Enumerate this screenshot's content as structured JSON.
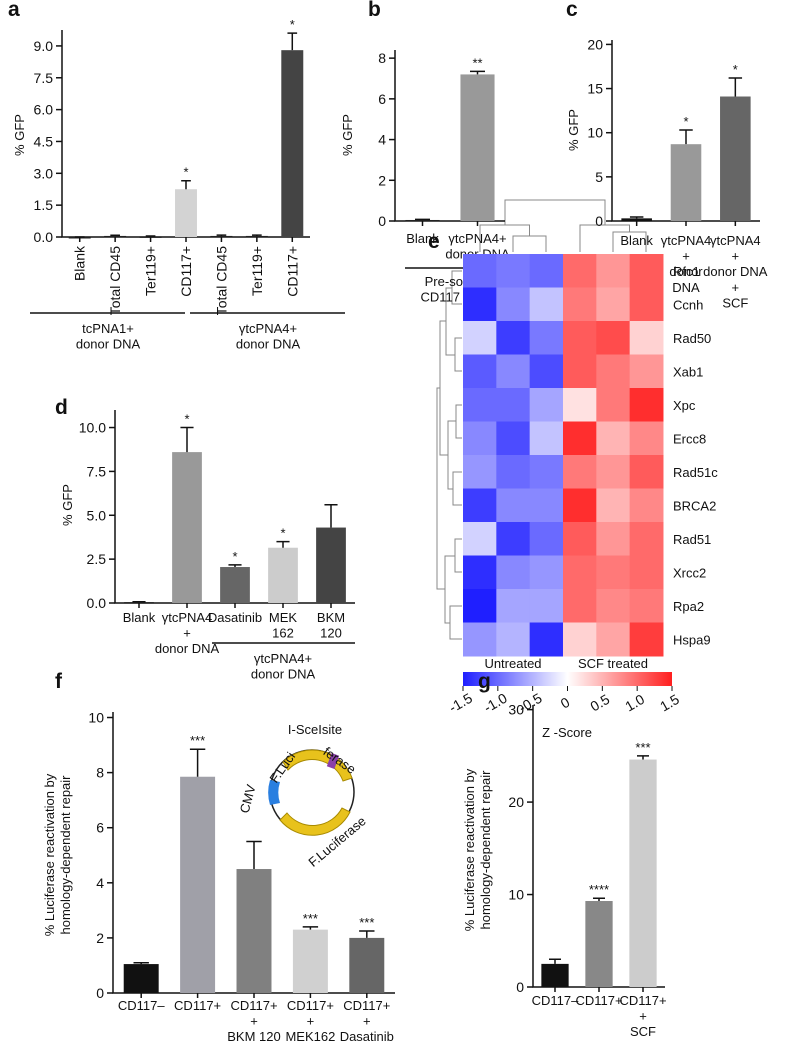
{
  "chart_data": [
    {
      "type": "bar",
      "panel": "a",
      "y_label": "% GFP",
      "categories": [
        "Blank",
        "Total CD45",
        "Ter119+",
        "CD117+",
        "Total CD45",
        "Ter119+",
        "CD117+"
      ],
      "values": [
        0,
        0.05,
        0.03,
        2.25,
        0.05,
        0.05,
        8.8
      ],
      "errors": [
        0,
        0.03,
        0.02,
        0.4,
        0.04,
        0.04,
        0.8
      ],
      "annotations": [
        null,
        null,
        null,
        "*",
        null,
        null,
        "*"
      ],
      "colors": [
        "#222222",
        "#222222",
        "#222222",
        "#d3d3d3",
        "#222222",
        "#222222",
        "#444444"
      ],
      "group_labels": [
        "tcPNA1+\ndonor DNA",
        "γtcPNA4+\ndonor DNA"
      ],
      "ylim": [
        0,
        9.75
      ],
      "yticks": [
        {
          "value": 0,
          "label": "0.0"
        },
        1.5,
        {
          "value": 3,
          "label": "3.0"
        },
        4.5,
        {
          "value": 6,
          "label": "6.0"
        },
        7.5,
        {
          "value": 9,
          "label": "9.0"
        }
      ]
    },
    {
      "type": "bar",
      "panel": "b",
      "y_label": "% GFP",
      "x_label": "Pre-sorted\nCD117 cells",
      "categories": [
        "Blank",
        "γtcPNA4+\ndonor DNA"
      ],
      "values": [
        0.05,
        7.2
      ],
      "errors": [
        0.03,
        0.15
      ],
      "annotations": [
        null,
        "**"
      ],
      "colors": [
        "#222222",
        "#999999"
      ],
      "ylim": [
        0,
        8.4
      ],
      "yticks": [
        0,
        2,
        4,
        6,
        8
      ]
    },
    {
      "type": "bar",
      "panel": "c",
      "y_label": "% GFP",
      "categories": [
        "Blank",
        "γtcPNA4\n+\ndonor\nDNA",
        "γtcPNA4\n+\ndonor DNA\n+\nSCF"
      ],
      "values": [
        0.3,
        8.7,
        14.1
      ],
      "errors": [
        0.15,
        1.6,
        2.1
      ],
      "annotations": [
        null,
        "*",
        "*"
      ],
      "colors": [
        "#111111",
        "#999999",
        "#666666"
      ],
      "ylim": [
        0,
        20.5
      ],
      "yticks": [
        0,
        5,
        10,
        15,
        20
      ]
    },
    {
      "type": "bar",
      "panel": "d",
      "y_label": "% GFP",
      "categories": [
        "Blank",
        "γtcPNA4\n+\ndonor DNA",
        "Dasatinib",
        "MEK\n162",
        "BKM\n120"
      ],
      "values": [
        0.05,
        8.6,
        2.05,
        3.15,
        4.3
      ],
      "errors": [
        0.02,
        1.4,
        0.12,
        0.35,
        1.3
      ],
      "annotations": [
        null,
        "*",
        "*",
        "*",
        null
      ],
      "colors": [
        "#222222",
        "#999999",
        "#666666",
        "#cccccc",
        "#444444"
      ],
      "group_labels": [
        "γtcPNA4+\ndonor  DNA"
      ],
      "ylim": [
        0,
        11
      ],
      "yticks": [
        {
          "value": 0,
          "label": "0.0"
        },
        2.5,
        {
          "value": 5,
          "label": "5.0"
        },
        7.5,
        {
          "value": 10,
          "label": "10.0"
        }
      ]
    },
    {
      "type": "heatmap",
      "panel": "e",
      "rows": [
        "Rfc1",
        "Ccnh",
        "Rad50",
        "Xab1",
        "Xpc",
        "Ercc8",
        "Rad51c",
        "BRCA2",
        "Rad51",
        "Xrcc2",
        "Rpa2",
        "Hspa9"
      ],
      "column_groups": [
        "Untreated",
        "SCF treated"
      ],
      "values": [
        [
          -1.0,
          -0.9,
          -1.0,
          1.0,
          0.7,
          1.1
        ],
        [
          -1.4,
          -0.8,
          -0.4,
          0.9,
          0.6,
          1.1
        ],
        [
          -0.3,
          -1.3,
          -0.9,
          1.1,
          1.2,
          0.3
        ],
        [
          -1.1,
          -0.8,
          -1.2,
          1.1,
          0.9,
          0.7
        ],
        [
          -1.0,
          -1.0,
          -0.6,
          0.2,
          0.9,
          1.4
        ],
        [
          -0.8,
          -1.2,
          -0.4,
          1.4,
          0.5,
          0.8
        ],
        [
          -0.7,
          -1.0,
          -0.9,
          0.9,
          0.7,
          1.1
        ],
        [
          -1.3,
          -0.8,
          -0.8,
          1.4,
          0.5,
          0.8
        ],
        [
          -0.3,
          -1.3,
          -1.0,
          1.1,
          0.7,
          1.0
        ],
        [
          -1.4,
          -0.8,
          -0.7,
          1.0,
          0.9,
          1.0
        ],
        [
          -1.5,
          -0.6,
          -0.6,
          1.0,
          0.8,
          0.9
        ],
        [
          -0.7,
          -0.5,
          -1.4,
          0.3,
          0.6,
          1.3
        ]
      ],
      "zlim": [
        -1.5,
        1.5
      ],
      "zticks": [
        -1.5,
        {
          "value": -1,
          "label": "-1.0"
        },
        -0.5,
        0,
        0.5,
        {
          "value": 1,
          "label": "1.0"
        },
        1.5
      ],
      "colorbar_label": "Z -Score"
    },
    {
      "type": "bar",
      "panel": "f",
      "y_label": "% Luciferase reactivation by\nhomology-dependent repair",
      "categories": [
        "CD117–",
        "CD117+",
        "CD117+\n+\nBKM 120",
        "CD117+\n+\nMEK162",
        "CD117+\n+\nDasatinib"
      ],
      "values": [
        1.05,
        7.85,
        4.5,
        2.3,
        2.0
      ],
      "errors": [
        0.05,
        1.0,
        1.0,
        0.1,
        0.25
      ],
      "annotations": [
        null,
        "***",
        null,
        "***",
        "***"
      ],
      "colors": [
        "#111111",
        "#a0a0a8",
        "#808080",
        "#d0d0d0",
        "#666666"
      ],
      "diagram": {
        "title": "I-SceIsite",
        "labels": [
          "F.Luci",
          "ferase",
          "CMV",
          "F.Luciferase"
        ]
      },
      "ylim": [
        0,
        10.2
      ],
      "yticks": [
        0,
        2,
        4,
        6,
        8,
        10
      ]
    },
    {
      "type": "bar",
      "panel": "g",
      "y_label": "% Luciferase reactivation by\nhomology-dependent repair",
      "categories": [
        "CD117–",
        "CD117+",
        "CD117+\n+\nSCF"
      ],
      "values": [
        2.5,
        9.3,
        24.6
      ],
      "errors": [
        0.5,
        0.3,
        0.4
      ],
      "annotations": [
        null,
        "****",
        "***"
      ],
      "colors": [
        "#111111",
        "#888888",
        "#cccccc"
      ],
      "ylim": [
        0,
        30.5
      ],
      "yticks": [
        0,
        10,
        20,
        30
      ]
    }
  ]
}
